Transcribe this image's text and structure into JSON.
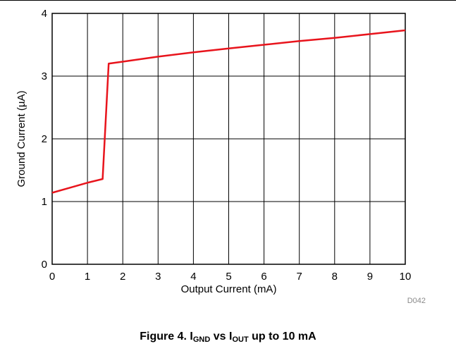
{
  "chart_data": {
    "type": "line",
    "xlabel": "Output Current (mA)",
    "ylabel": "Ground Current (µA)",
    "xlim": [
      0,
      10
    ],
    "ylim": [
      0,
      4
    ],
    "x_ticks": [
      "0",
      "1",
      "2",
      "3",
      "4",
      "5",
      "6",
      "7",
      "8",
      "9",
      "10"
    ],
    "y_ticks": [
      "0",
      "1",
      "2",
      "3",
      "4"
    ],
    "grid": true,
    "series": [
      {
        "color": "#e8141c",
        "x": [
          0,
          0.5,
          1.0,
          1.43,
          1.6,
          2,
          3,
          4,
          5,
          6,
          7,
          8,
          9,
          10
        ],
        "y": [
          1.14,
          1.22,
          1.3,
          1.36,
          3.2,
          3.23,
          3.31,
          3.38,
          3.44,
          3.5,
          3.56,
          3.61,
          3.67,
          3.73
        ]
      }
    ],
    "code": "D042"
  },
  "caption": {
    "prefix": "Figure 4. I",
    "sub1": "GND",
    "middle": " vs I",
    "sub2": "OUT",
    "suffix": " up to 10 mA"
  }
}
